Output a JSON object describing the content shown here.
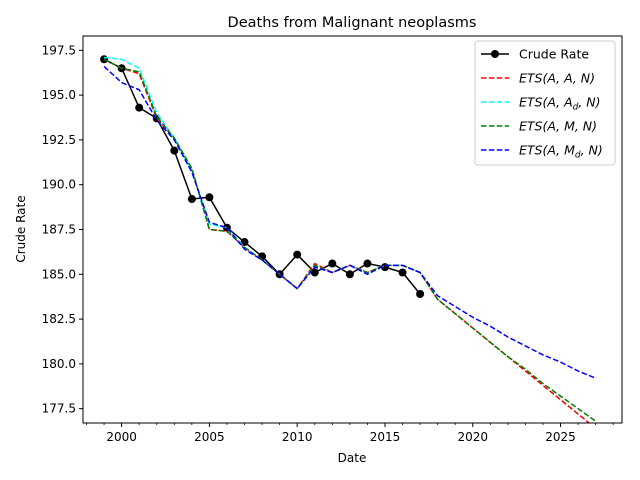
{
  "chart_data": {
    "type": "line",
    "title": "Deaths from Malignant neoplasms",
    "xlabel": "Date",
    "ylabel": "Crude Rate",
    "xlim": [
      1997.8,
      2028.5
    ],
    "ylim": [
      176.7,
      198.3
    ],
    "x_ticks": [
      2000,
      2005,
      2010,
      2015,
      2020,
      2025
    ],
    "x_tick_labels": [
      "2000",
      "2005",
      "2010",
      "2015",
      "2020",
      "2025"
    ],
    "x_minor_ticks": [
      1998,
      1999,
      2001,
      2002,
      2003,
      2004,
      2006,
      2007,
      2008,
      2009,
      2011,
      2012,
      2013,
      2014,
      2016,
      2017,
      2018,
      2019,
      2021,
      2022,
      2023,
      2024,
      2026,
      2027,
      2028
    ],
    "y_ticks": [
      177.5,
      180.0,
      182.5,
      185.0,
      187.5,
      190.0,
      192.5,
      195.0,
      197.5
    ],
    "y_tick_labels": [
      "177.5",
      "180.0",
      "182.5",
      "185.0",
      "187.5",
      "190.0",
      "192.5",
      "195.0",
      "197.5"
    ],
    "grid": false,
    "legend_position": "top-right",
    "legend": [
      {
        "pre": "Crude Rate",
        "sub": "",
        "post": "",
        "italic": false,
        "color": "#000000",
        "dash": "solid",
        "marker": true
      },
      {
        "pre": "ETS(A, A, N)",
        "sub": "",
        "post": "",
        "italic": true,
        "color": "#ff0000",
        "dash": "dashed",
        "marker": false
      },
      {
        "pre": "ETS(A, A",
        "sub": "d",
        "post": ", N)",
        "italic": true,
        "color": "#00ffff",
        "dash": "dashed",
        "marker": false
      },
      {
        "pre": "ETS(A, M, N)",
        "sub": "",
        "post": "",
        "italic": true,
        "color": "#008000",
        "dash": "dashed",
        "marker": false
      },
      {
        "pre": "ETS(A, M",
        "sub": "d",
        "post": ", N)",
        "italic": true,
        "color": "#0000ff",
        "dash": "dashed",
        "marker": false
      }
    ],
    "series": [
      {
        "name": "Crude Rate",
        "color": "#000000",
        "style": "solid-marker",
        "x": [
          1999,
          2000,
          2001,
          2002,
          2003,
          2004,
          2005,
          2006,
          2007,
          2008,
          2009,
          2010,
          2011,
          2012,
          2013,
          2014,
          2015,
          2016,
          2017
        ],
        "y": [
          197.0,
          196.5,
          194.3,
          193.7,
          191.9,
          189.2,
          189.3,
          187.6,
          186.8,
          186.0,
          185.0,
          186.1,
          185.1,
          185.6,
          185.0,
          185.6,
          185.4,
          185.1,
          183.9
        ]
      },
      {
        "name": "ETS(A, A, N)",
        "color": "#ff0000",
        "style": "dashed",
        "x": [
          1999,
          2000,
          2001,
          2002,
          2003,
          2004,
          2005,
          2006,
          2007,
          2008,
          2009,
          2010,
          2011,
          2012,
          2013,
          2014,
          2015,
          2016,
          2017,
          2018,
          2019,
          2020,
          2021,
          2022,
          2023,
          2024,
          2025,
          2026,
          2027
        ],
        "y": [
          197.0,
          196.5,
          196.2,
          193.7,
          192.6,
          190.9,
          187.5,
          187.4,
          186.5,
          185.8,
          185.0,
          184.2,
          185.6,
          185.1,
          185.5,
          185.1,
          185.5,
          185.5,
          185.1,
          183.6,
          182.8,
          182.0,
          181.2,
          180.4,
          179.6,
          178.8,
          178.0,
          177.2,
          176.4
        ]
      },
      {
        "name": "ETS(A, Ad, N)",
        "color": "#00ffff",
        "style": "dashed",
        "x": [
          1999,
          2000,
          2001,
          2002,
          2003,
          2004,
          2005,
          2006,
          2007,
          2008,
          2009,
          2010,
          2011,
          2012,
          2013,
          2014,
          2015,
          2016,
          2017
        ],
        "y": [
          197.1,
          197.0,
          196.5,
          194.0,
          192.6,
          190.8,
          187.8,
          187.6,
          186.5,
          185.8,
          185.0,
          184.2,
          185.5,
          185.1,
          185.5,
          185.1,
          185.5,
          185.5,
          185.1
        ]
      },
      {
        "name": "ETS(A, M, N)",
        "color": "#008000",
        "style": "dashed",
        "x": [
          1999,
          2000,
          2001,
          2002,
          2003,
          2004,
          2005,
          2006,
          2007,
          2008,
          2009,
          2010,
          2011,
          2012,
          2013,
          2014,
          2015,
          2016,
          2017,
          2018,
          2019,
          2020,
          2021,
          2022,
          2023,
          2024,
          2025,
          2026,
          2027
        ],
        "y": [
          197.0,
          196.5,
          196.3,
          193.8,
          192.6,
          190.9,
          187.5,
          187.4,
          186.5,
          185.8,
          185.0,
          184.2,
          185.5,
          185.1,
          185.5,
          185.1,
          185.5,
          185.5,
          185.1,
          183.6,
          182.8,
          182.0,
          181.2,
          180.4,
          179.7,
          178.9,
          178.2,
          177.5,
          176.8
        ]
      },
      {
        "name": "ETS(A, Md, N)",
        "color": "#0000ff",
        "style": "dashed",
        "x": [
          1999,
          2000,
          2001,
          2002,
          2003,
          2004,
          2005,
          2006,
          2007,
          2008,
          2009,
          2010,
          2011,
          2012,
          2013,
          2014,
          2015,
          2016,
          2017,
          2018,
          2019,
          2020,
          2021,
          2022,
          2023,
          2024,
          2025,
          2026,
          2027
        ],
        "y": [
          196.6,
          195.7,
          195.3,
          193.6,
          192.5,
          190.7,
          187.9,
          187.6,
          186.4,
          185.8,
          185.0,
          184.2,
          185.4,
          185.1,
          185.5,
          185.0,
          185.5,
          185.5,
          185.1,
          183.8,
          183.2,
          182.6,
          182.1,
          181.5,
          181.0,
          180.5,
          180.1,
          179.6,
          179.2
        ]
      }
    ]
  }
}
